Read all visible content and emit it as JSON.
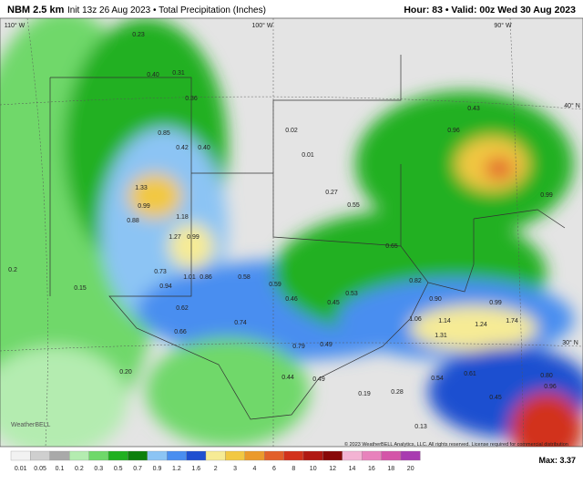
{
  "header": {
    "title": "NBM 2.5 km",
    "subtitle": "Init 13z 26 Aug 2023 • Total Precipitation (Inches)",
    "valid": "Hour: 83 • Valid: 00z Wed 30 Aug 2023"
  },
  "map": {
    "graticule": [
      "110° W",
      "100° W",
      "90° W",
      "40° N",
      "30° N"
    ],
    "labels": [
      "0.23",
      "0.40",
      "0.31",
      "0.36",
      "0.85",
      "0.42",
      "0.40",
      "1.33",
      "0.99",
      "1.18",
      "0.88",
      "1.27",
      "0.99",
      "0.73",
      "1.01",
      "0.86",
      "0.94",
      "0.58",
      "0.59",
      "0.46",
      "0.62",
      "0.74",
      "0.66",
      "0.79",
      "0.49",
      "0.44",
      "0.19",
      "0.28",
      "0.53",
      "0.45",
      "0.82",
      "0.90",
      "0.99",
      "1.06",
      "1.14",
      "1.24",
      "1.74",
      "1.31",
      "0.54",
      "0.61",
      "0.45",
      "0.80",
      "0.96",
      "0.43",
      "0.96",
      "0.99",
      "0.27",
      "0.55",
      "0.65",
      "0.49",
      "0.02",
      "0.01",
      "0.2",
      "0.15",
      "0.20",
      "0.13"
    ],
    "watermark": "WeatherBELL",
    "copyright": "© 2023 WeatherBELL Analytics, LLC. All rights reserved. License required for commercial distribution",
    "max": "Max: 3.37"
  },
  "legend": {
    "ticks": [
      0.01,
      0.05,
      0.1,
      0.2,
      0.3,
      0.5,
      0.7,
      0.9,
      1.2,
      1.6,
      2,
      3,
      4,
      6,
      8,
      10,
      12,
      14,
      16,
      18,
      20
    ],
    "colors": [
      "#f2f2f2",
      "#cfcfcf",
      "#a9a9a9",
      "#b4ecb0",
      "#6fd86a",
      "#20b020",
      "#0d800d",
      "#8cc4f4",
      "#4a8ef0",
      "#1f4fd0",
      "#f6eb95",
      "#f2c843",
      "#eb9a2c",
      "#e2602a",
      "#d2321c",
      "#b01812",
      "#880808",
      "#f3b3d3",
      "#e882bc",
      "#d455a8",
      "#a83cb0"
    ]
  }
}
